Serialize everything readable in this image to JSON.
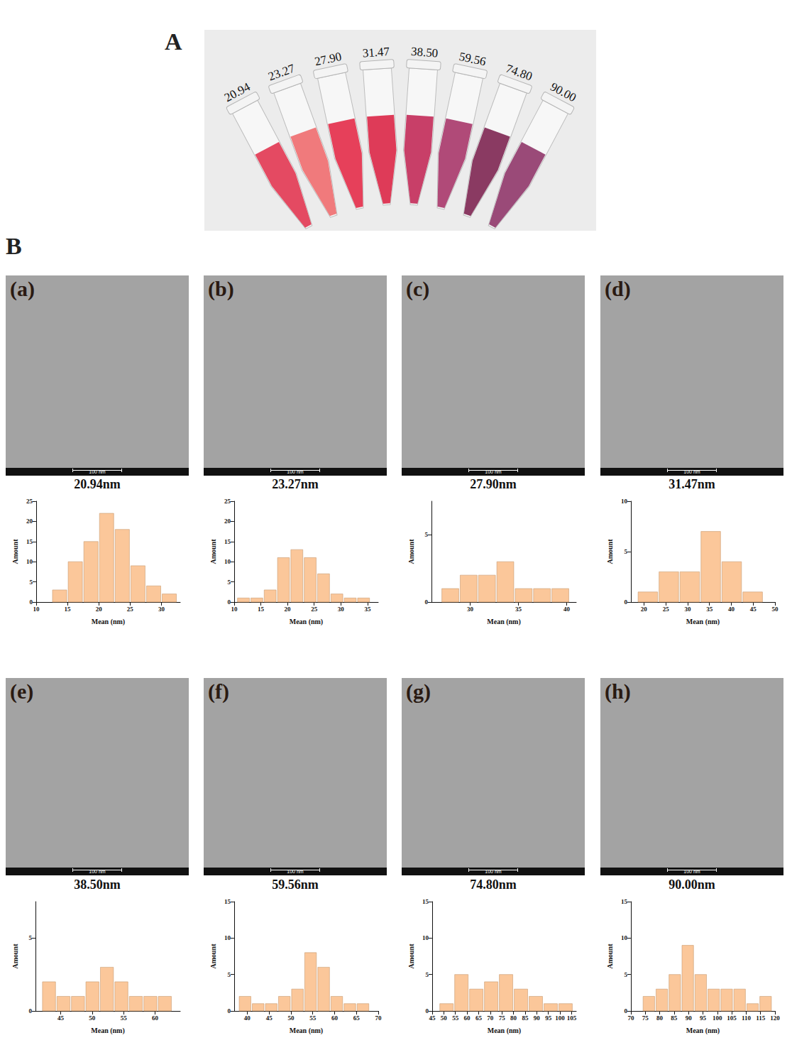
{
  "panel_a": {
    "label": "A",
    "samples": [
      {
        "label": "20.94",
        "color": "#e44a62"
      },
      {
        "label": "23.27",
        "color": "#f07a7c"
      },
      {
        "label": "27.90",
        "color": "#e6405a"
      },
      {
        "label": "31.47",
        "color": "#de3b58"
      },
      {
        "label": "38.50",
        "color": "#c83f68"
      },
      {
        "label": "59.56",
        "color": "#b04a78"
      },
      {
        "label": "74.80",
        "color": "#8a3a62"
      },
      {
        "label": "90.00",
        "color": "#9a4a78"
      }
    ]
  },
  "panel_b": {
    "label": "B"
  },
  "chart_data": [
    {
      "type": "histogram",
      "panel": "(a)",
      "caption": "20.94nm",
      "scale_bar": "100 nm",
      "color": "#fbc79a",
      "xlabel": "Mean (nm)",
      "ylabel": "Amount",
      "bins": [
        12.5,
        15,
        17.5,
        20,
        22.5,
        25,
        27.5,
        30,
        32.5
      ],
      "values": [
        3,
        10,
        15,
        22,
        18,
        9,
        4,
        2
      ],
      "xlim": [
        10,
        33
      ],
      "xticks": [
        10,
        15,
        20,
        25,
        30
      ],
      "ylim": [
        0,
        25
      ],
      "yticks": [
        0,
        5,
        10,
        15,
        20,
        25
      ]
    },
    {
      "type": "histogram",
      "panel": "(b)",
      "caption": "23.27nm",
      "scale_bar": "100 nm",
      "color": "#fbc79a",
      "xlabel": "Mean (nm)",
      "ylabel": "Amount",
      "bins": [
        10.5,
        13,
        15.5,
        18,
        20.5,
        23,
        25.5,
        28,
        30.5,
        33,
        35.5
      ],
      "values": [
        1,
        1,
        3,
        11,
        13,
        11,
        7,
        2,
        1,
        1
      ],
      "xlim": [
        10,
        37
      ],
      "xticks": [
        10,
        15,
        20,
        25,
        30,
        35
      ],
      "ylim": [
        0,
        25
      ],
      "yticks": [
        0,
        5,
        10,
        15,
        20,
        25
      ]
    },
    {
      "type": "histogram",
      "panel": "(c)",
      "caption": "27.90nm",
      "scale_bar": "100 nm",
      "color": "#fbc79a",
      "xlabel": "Mean (nm)",
      "ylabel": "Amount",
      "bins": [
        27,
        28.9,
        30.8,
        32.7,
        34.6,
        36.5,
        38.4,
        40.3
      ],
      "values": [
        1,
        2,
        2,
        3,
        1,
        1,
        1
      ],
      "xlim": [
        26,
        41
      ],
      "xticks": [
        30,
        35,
        40
      ],
      "ylim": [
        0,
        7.5
      ],
      "yticks": [
        0,
        5
      ]
    },
    {
      "type": "histogram",
      "panel": "(d)",
      "caption": "31.47nm",
      "scale_bar": "100 nm",
      "color": "#fbc79a",
      "xlabel": "Mean (nm)",
      "ylabel": "Amount",
      "bins": [
        18.5,
        23.3,
        28.1,
        32.9,
        37.7,
        42.5,
        47.3
      ],
      "values": [
        1,
        3,
        3,
        7,
        4,
        1
      ],
      "xlim": [
        17,
        50
      ],
      "xticks": [
        20,
        25,
        30,
        35,
        40,
        45,
        50
      ],
      "ylim": [
        0,
        10
      ],
      "yticks": [
        0,
        5,
        10
      ]
    },
    {
      "type": "histogram",
      "panel": "(e)",
      "caption": "38.50nm",
      "scale_bar": "100 nm",
      "color": "#fbc79a",
      "xlabel": "Mean (nm)",
      "ylabel": "Amount",
      "bins": [
        42,
        44.3,
        46.6,
        48.9,
        51.2,
        53.5,
        55.8,
        58.1,
        60.4,
        62.7
      ],
      "values": [
        2,
        1,
        1,
        2,
        3,
        2,
        1,
        1,
        1
      ],
      "xlim": [
        41,
        64
      ],
      "xticks": [
        45,
        50,
        55,
        60
      ],
      "ylim": [
        0,
        7.5
      ],
      "yticks": [
        0,
        5
      ]
    },
    {
      "type": "histogram",
      "panel": "(f)",
      "caption": "59.56nm",
      "scale_bar": "100 nm",
      "color": "#fbc79a",
      "xlabel": "Mean (nm)",
      "ylabel": "Amount",
      "bins": [
        38,
        41,
        44,
        47,
        50,
        53,
        56,
        59,
        62,
        65,
        68
      ],
      "values": [
        2,
        1,
        1,
        2,
        3,
        8,
        6,
        2,
        1,
        1
      ],
      "xlim": [
        37,
        70
      ],
      "xticks": [
        40,
        45,
        50,
        55,
        60,
        65,
        70
      ],
      "ylim": [
        0,
        15
      ],
      "yticks": [
        0,
        5,
        10,
        15
      ]
    },
    {
      "type": "histogram",
      "panel": "(g)",
      "caption": "74.80nm",
      "scale_bar": "100 nm",
      "color": "#fbc79a",
      "xlabel": "Mean (nm)",
      "ylabel": "Amount",
      "bins": [
        48,
        54.4,
        60.8,
        67.2,
        73.6,
        80,
        86.4,
        92.8,
        99.2,
        105.6
      ],
      "values": [
        1,
        5,
        3,
        4,
        5,
        3,
        2,
        1,
        1
      ],
      "xlim": [
        45,
        107
      ],
      "xticks": [
        45,
        50,
        55,
        60,
        65,
        70,
        75,
        80,
        85,
        90,
        95,
        100,
        105
      ],
      "ylim": [
        0,
        15
      ],
      "yticks": [
        0,
        5,
        10,
        15
      ]
    },
    {
      "type": "histogram",
      "panel": "(h)",
      "caption": "90.00nm",
      "scale_bar": "100 nm",
      "color": "#fbc79a",
      "xlabel": "Mean (nm)",
      "ylabel": "Amount",
      "bins": [
        74,
        78.5,
        83,
        87.5,
        92,
        96.5,
        101,
        105.5,
        110,
        114.5,
        119
      ],
      "values": [
        2,
        3,
        5,
        9,
        5,
        3,
        3,
        3,
        1,
        2
      ],
      "xlim": [
        70,
        120
      ],
      "xticks": [
        70,
        75,
        80,
        85,
        90,
        95,
        100,
        105,
        110,
        115,
        120
      ],
      "ylim": [
        0,
        15
      ],
      "yticks": [
        0,
        5,
        10,
        15
      ]
    }
  ]
}
